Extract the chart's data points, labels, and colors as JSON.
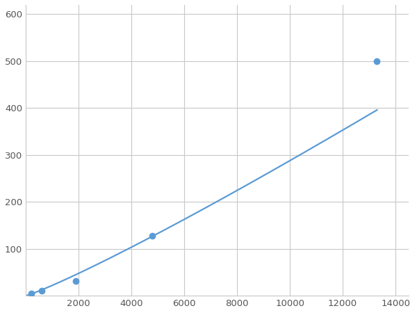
{
  "x": [
    200,
    600,
    1900,
    4800,
    13300
  ],
  "y": [
    5,
    10,
    32,
    128,
    500
  ],
  "line_color": "#5b9bd5",
  "marker_color": "#5b9bd5",
  "marker_size": 6,
  "line_width": 1.6,
  "xlim": [
    0,
    14500
  ],
  "ylim": [
    0,
    620
  ],
  "xticks": [
    2000,
    4000,
    6000,
    8000,
    10000,
    12000,
    14000
  ],
  "yticks": [
    100,
    200,
    300,
    400,
    500,
    600
  ],
  "background_color": "#ffffff",
  "grid_color": "#c8c8c8",
  "tick_fontsize": 9.5
}
